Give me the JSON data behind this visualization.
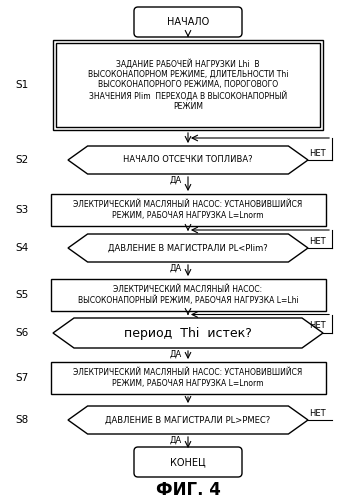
{
  "title": "ФИГ. 4",
  "background_color": "#ffffff",
  "start_text": "НАЧАЛО",
  "end_text": "КОНЕЦ",
  "s1_text": "ЗАДАНИЕ РАБОЧЕЙ НАГРУЗКИ Lhi  В\nВЫСОКОНАПОРНОМ РЕЖИМЕ, ДЛИТЕЛЬНОСТИ Thi\nВЫСОКОНАПОРНОГО РЕЖИМА, ПОРОГОВОГО\nЗНАЧЕНИЯ Plim  ПЕРЕХОДА В ВЫСОКОНАПОРНЫЙ\nРЕЖИМ",
  "s2_text": "НАЧАЛО ОТСЕЧКИ ТОПЛИВА?",
  "s3_text": "ЭЛЕКТРИЧЕСКИЙ МАСЛЯНЫЙ НАСОС: УСТАНОВИВШИЙСЯ\nРЕЖИМ, РАБОЧАЯ НАГРУЗКА L=Lnorm",
  "s4_text": "ДАВЛЕНИЕ В МАГИСТРАЛИ PL<Plim?",
  "s5_text": "ЭЛЕКТРИЧЕСКИЙ МАСЛЯНЫЙ НАСОС:\nВЫСОКОНАПОРНЫЙ РЕЖИМ, РАБОЧАЯ НАГРУЗКА L=Lhi",
  "s6_text": "период  Thi  истек?",
  "s7_text": "ЭЛЕКТРИЧЕСКИЙ МАСЛЯНЫЙ НАСОС: УСТАНОВИВШИЙСЯ\nРЕЖИМ, РАБОЧАЯ НАГРУЗКА L=Lnorm",
  "s8_text": "ДАВЛЕНИЕ В МАГИСТРАЛИ PL>РМЕС?",
  "da_text": "ДА",
  "net_text": "НЕТ"
}
